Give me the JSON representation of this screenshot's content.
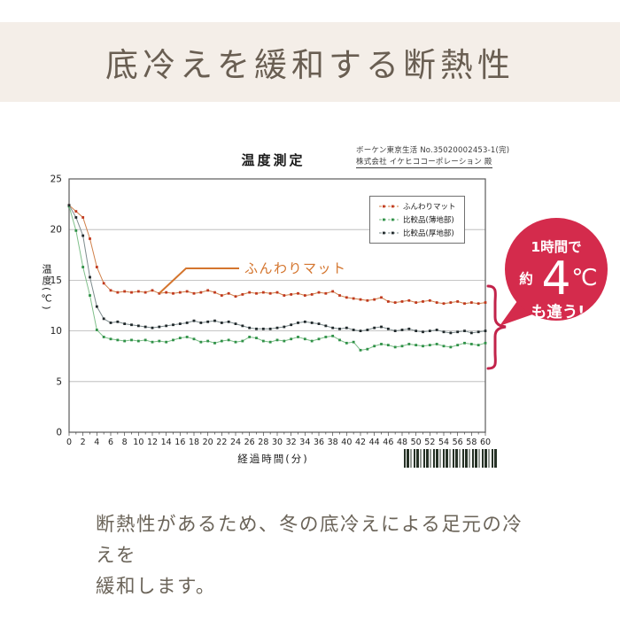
{
  "page": {
    "band_bg": "#f4eee8",
    "title": "底冷えを緩和する断熱性",
    "caption_line1": "断熱性があるため、冬の底冷えによる足元の冷えを",
    "caption_line2": "緩和します。"
  },
  "report": {
    "doc_number": "ボーケン東京生活 No.35020002453-1(完)",
    "company_line": "株式会社 イケヒココーポレーション 殿"
  },
  "annotation": {
    "label": "ふんわりマット",
    "color": "#d4752e"
  },
  "brace": {
    "color": "#c2234a"
  },
  "badge": {
    "bg": "#d42b4c",
    "line1": "1時間で",
    "prefix": "約",
    "value": "4",
    "unit": "℃",
    "line3": "も違う!"
  },
  "chart_data": {
    "type": "line",
    "title": "温度測定",
    "xlabel": "経過時間(分)",
    "ylabel": "温度(℃)",
    "xlim": [
      0,
      60
    ],
    "ylim": [
      0,
      25
    ],
    "x_ticks": [
      0,
      2,
      4,
      6,
      8,
      10,
      12,
      14,
      16,
      18,
      20,
      22,
      24,
      26,
      28,
      30,
      32,
      34,
      36,
      38,
      40,
      42,
      44,
      46,
      48,
      50,
      52,
      54,
      56,
      58,
      60
    ],
    "y_ticks": [
      0,
      5,
      10,
      15,
      20,
      25
    ],
    "grid": true,
    "legend_position": "top-right",
    "x": [
      0,
      1,
      2,
      3,
      4,
      5,
      6,
      7,
      8,
      9,
      10,
      11,
      12,
      13,
      14,
      15,
      16,
      17,
      18,
      19,
      20,
      21,
      22,
      23,
      24,
      25,
      26,
      27,
      28,
      29,
      30,
      31,
      32,
      33,
      34,
      35,
      36,
      37,
      38,
      39,
      40,
      41,
      42,
      43,
      44,
      45,
      46,
      47,
      48,
      49,
      50,
      51,
      52,
      53,
      54,
      55,
      56,
      57,
      58,
      59,
      60
    ],
    "series": [
      {
        "name": "ふんわりマット",
        "line_color": "#d0804a",
        "marker_color": "#c0391e",
        "values": [
          22.4,
          21.8,
          21.2,
          19.1,
          16.3,
          14.7,
          14.0,
          13.8,
          13.9,
          13.8,
          13.9,
          13.8,
          14.0,
          13.7,
          13.8,
          13.7,
          13.8,
          13.9,
          13.7,
          13.8,
          14.0,
          13.8,
          13.5,
          13.7,
          13.4,
          13.6,
          13.8,
          13.7,
          13.8,
          13.7,
          13.8,
          13.5,
          13.6,
          13.7,
          13.5,
          13.6,
          13.8,
          13.7,
          13.9,
          13.5,
          13.3,
          13.2,
          13.1,
          13.0,
          13.1,
          13.3,
          12.9,
          12.8,
          12.9,
          13.0,
          12.8,
          12.9,
          13.0,
          12.8,
          12.7,
          12.8,
          12.9,
          12.7,
          12.8,
          12.7,
          12.8
        ]
      },
      {
        "name": "比較品(薄地部)",
        "line_color": "#7fbf8a",
        "marker_color": "#2f9147",
        "values": [
          22.3,
          19.9,
          16.3,
          13.5,
          10.1,
          9.4,
          9.2,
          9.1,
          9.0,
          9.1,
          9.0,
          9.1,
          8.9,
          9.0,
          8.9,
          9.1,
          9.3,
          9.4,
          9.2,
          8.9,
          9.0,
          8.8,
          9.0,
          9.1,
          8.9,
          9.0,
          9.4,
          9.3,
          9.0,
          8.9,
          9.1,
          9.0,
          9.2,
          9.4,
          9.2,
          9.0,
          9.2,
          9.4,
          9.5,
          9.1,
          8.8,
          8.9,
          8.1,
          8.2,
          8.5,
          8.7,
          8.6,
          8.4,
          8.5,
          8.7,
          8.6,
          8.5,
          8.6,
          8.7,
          8.5,
          8.4,
          8.6,
          8.8,
          8.7,
          8.6,
          8.8
        ]
      },
      {
        "name": "比較品(厚地部)",
        "line_color": "#7e8c8e",
        "marker_color": "#20282a",
        "values": [
          22.4,
          21.2,
          19.4,
          15.3,
          12.4,
          11.2,
          10.8,
          10.9,
          10.7,
          10.6,
          10.5,
          10.4,
          10.3,
          10.4,
          10.5,
          10.6,
          10.7,
          10.8,
          11.0,
          10.8,
          10.9,
          11.0,
          10.8,
          10.9,
          10.7,
          10.5,
          10.3,
          10.2,
          10.2,
          10.2,
          10.3,
          10.4,
          10.6,
          10.8,
          10.9,
          10.8,
          10.7,
          10.5,
          10.3,
          10.2,
          10.3,
          10.1,
          10.0,
          10.1,
          10.3,
          10.4,
          10.2,
          10.0,
          10.1,
          10.2,
          10.0,
          9.9,
          10.0,
          10.1,
          9.9,
          9.8,
          9.9,
          10.0,
          9.8,
          9.9,
          10.0
        ]
      }
    ]
  }
}
